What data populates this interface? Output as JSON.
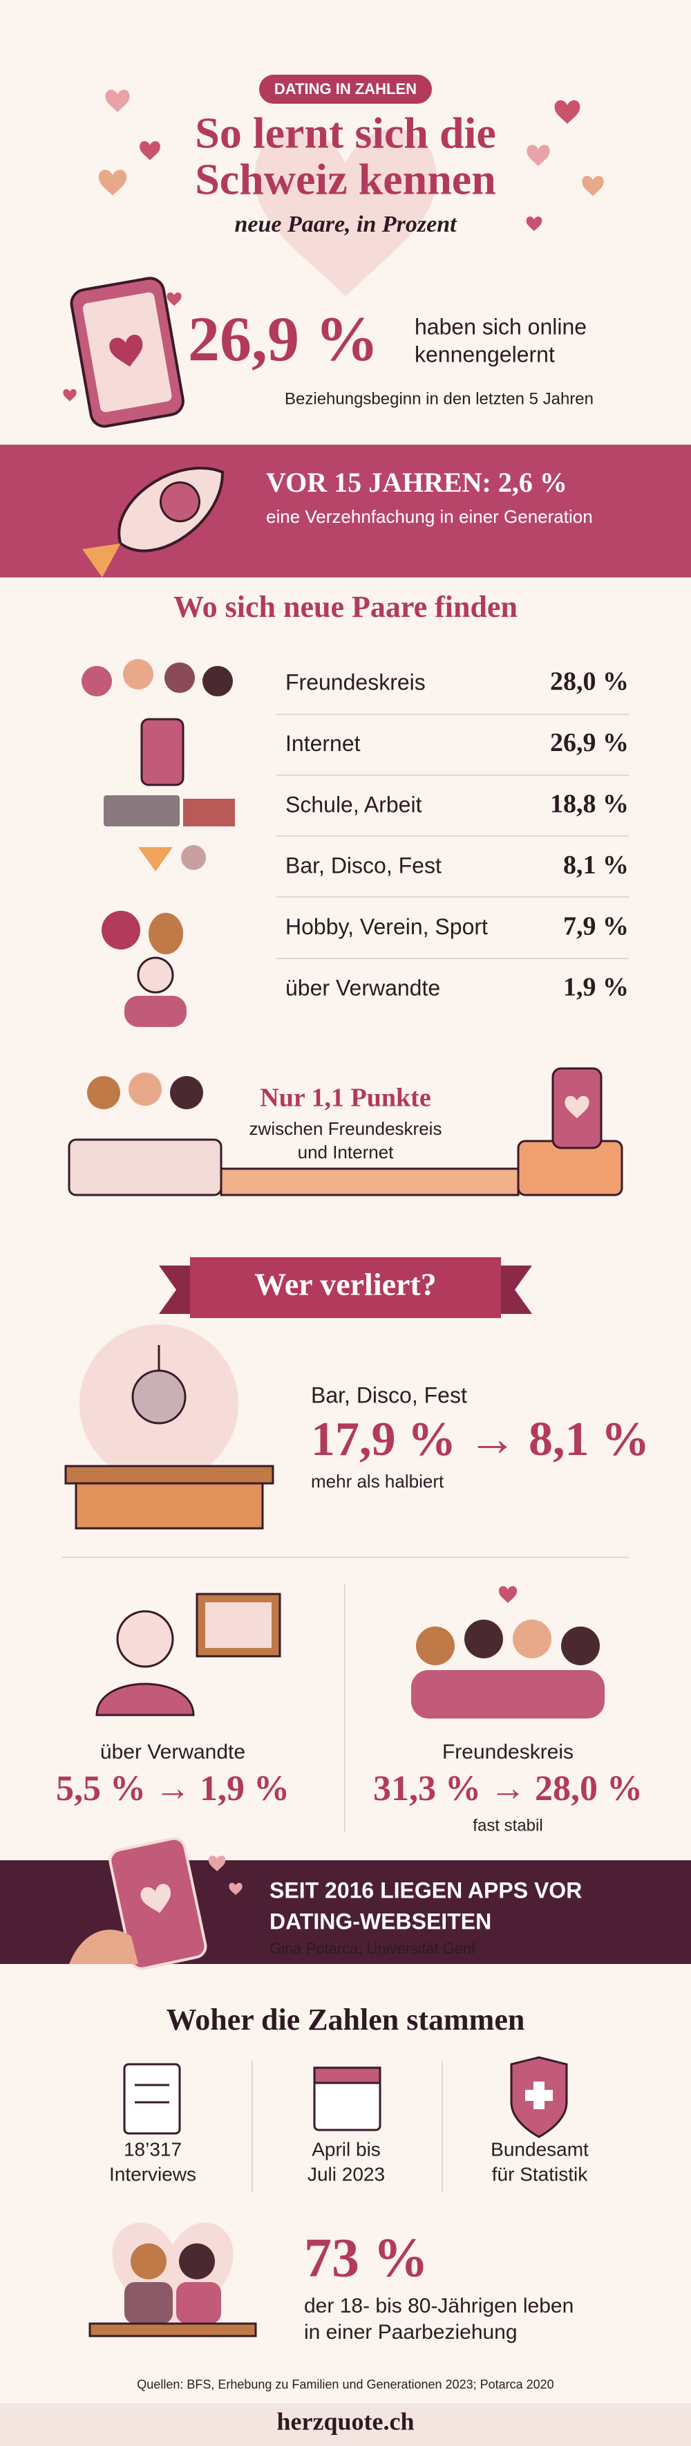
{
  "header": {
    "badge": "DATING IN ZAHLEN",
    "title_lines": [
      "So lernt sich die",
      "Schweiz kennen"
    ],
    "subtitle": "neue Paare, in Prozent"
  },
  "online": {
    "value": "26,9 %",
    "text_lines": [
      "haben sich online",
      "kennengelernt"
    ],
    "note": "Beziehungsbeginn in den letzten 5 Jahren"
  },
  "past": {
    "headline": "VOR 15 JAHREN: 2,6 %",
    "text": "eine Verzehnfachung in einer Generation"
  },
  "places": {
    "title": "Wo sich neue Paare finden",
    "rows": [
      [
        "Freundeskreis",
        "28,0 %"
      ],
      [
        "Internet",
        "26,9 %"
      ],
      [
        "Schule, Arbeit",
        "18,8 %"
      ],
      [
        "Bar, Disco, Fest",
        "8,1 %"
      ],
      [
        "Hobby, Verein, Sport",
        "7,9 %"
      ],
      [
        "über Verwandte",
        "1,9 %"
      ]
    ]
  },
  "gap": {
    "headline": "Nur 1,1 Punkte",
    "text_lines": [
      "zwischen Freundeskreis",
      "und Internet"
    ]
  },
  "losers": {
    "title": "Wer verliert?",
    "bar": {
      "label": "Bar, Disco, Fest",
      "change": "17,9 % → 8,1 %",
      "note": "mehr als halbiert"
    },
    "relatives": {
      "label": "über Verwandte",
      "change": "5,5 % → 1,9 %"
    },
    "friends": {
      "label": "Freundeskreis",
      "change": "31,3 % → 28,0 %",
      "note": "fast stabil"
    }
  },
  "apps": {
    "text_lines": [
      "SEIT 2016 LIEGEN APPS VOR",
      "DATING-WEBSEITEN"
    ],
    "source": "Gina Potarca, Universität Genf"
  },
  "sources": {
    "title": "Woher die Zahlen stammen",
    "items": [
      [
        "18’317",
        "Interviews"
      ],
      [
        "April bis",
        "Juli 2023"
      ],
      [
        "Bundesamt",
        "für Statistik"
      ]
    ]
  },
  "couples": {
    "value": "73 %",
    "text_lines": [
      "der 18- bis 80-Jährigen leben",
      "in einer Paarbeziehung"
    ]
  },
  "footer": {
    "sources": "Quellen: BFS, Erhebung zu Familien und Generationen 2023; Potarca 2020",
    "brand": "herzquote.ch"
  }
}
